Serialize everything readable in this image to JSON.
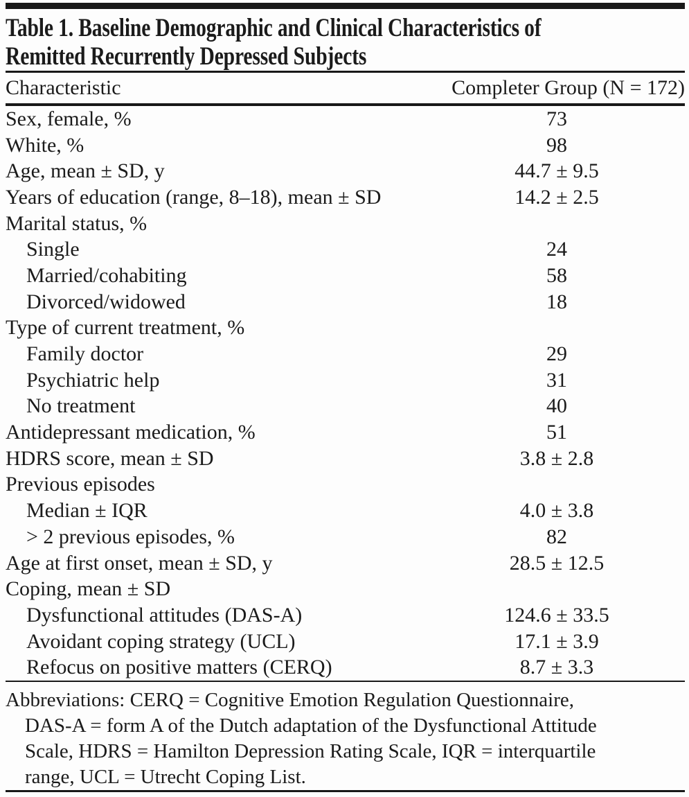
{
  "table": {
    "title_lines": [
      "Table 1. Baseline Demographic and Clinical Characteristics of",
      "Remitted Recurrently Depressed Subjects"
    ],
    "columns": [
      "Characteristic",
      "Completer Group (N = 172)"
    ],
    "rows": [
      {
        "label": "Sex, female, %",
        "value": "73"
      },
      {
        "label": "White, %",
        "value": "98"
      },
      {
        "label": "Age, mean ± SD, y",
        "value": "44.7 ± 9.5"
      },
      {
        "label": "Years of education (range, 8–18), mean ± SD",
        "value": "14.2 ± 2.5"
      },
      {
        "label": "Marital status, %",
        "value": ""
      },
      {
        "label": "Single",
        "value": "24"
      },
      {
        "label": "Married/cohabiting",
        "value": "58"
      },
      {
        "label": "Divorced/widowed",
        "value": "18"
      },
      {
        "label": "Type of current treatment, %",
        "value": ""
      },
      {
        "label": "Family doctor",
        "value": "29"
      },
      {
        "label": "Psychiatric help",
        "value": "31"
      },
      {
        "label": "No treatment",
        "value": "40"
      },
      {
        "label": "Antidepressant medication, %",
        "value": "51"
      },
      {
        "label": "HDRS score, mean ± SD",
        "value": "3.8 ± 2.8"
      },
      {
        "label": "Previous episodes",
        "value": ""
      },
      {
        "label": "Median ± IQR",
        "value": "4.0 ± 3.8"
      },
      {
        "label": "> 2 previous episodes, %",
        "value": "82"
      },
      {
        "label": "Age at first onset, mean ± SD, y",
        "value": "28.5 ± 12.5"
      },
      {
        "label": "Coping, mean ± SD",
        "value": ""
      },
      {
        "label": "Dysfunctional attitudes (DAS-A)",
        "value": "124.6 ± 33.5"
      },
      {
        "label": "Avoidant coping strategy (UCL)",
        "value": "17.1 ± 3.9"
      },
      {
        "label": "Refocus on positive matters (CERQ)",
        "value": "8.7 ± 3.3"
      }
    ],
    "footnote_lines": [
      "Abbreviations: CERQ = Cognitive Emotion Regulation Questionnaire,",
      "DAS-A = form A of the Dutch adaptation of the Dysfunctional Attitude",
      "Scale, HDRS = Hamilton Depression Rating Scale, IQR = interquartile",
      "range, UCL = Utrecht Coping List."
    ],
    "colors": {
      "ink": "#1b1b1b",
      "rule": "#181818",
      "background": "#fdfdfd"
    }
  }
}
